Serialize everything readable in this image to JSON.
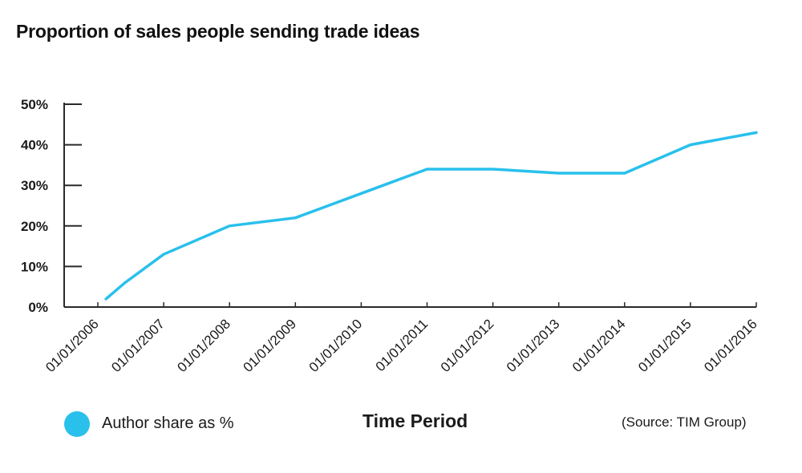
{
  "chart_data": {
    "type": "line",
    "title": "Proportion of sales people sending trade ideas",
    "xlabel": "Time Period",
    "ylabel": "",
    "ylim": [
      0,
      50
    ],
    "y_tick_values": [
      0,
      10,
      20,
      30,
      40,
      50
    ],
    "y_tick_labels": [
      "0%",
      "10%",
      "20%",
      "30%",
      "40%",
      "50%"
    ],
    "categories": [
      "01/01/2006",
      "01/01/2007",
      "01/01/2008",
      "01/01/2009",
      "01/01/2010",
      "01/01/2011",
      "01/01/2012",
      "01/01/2013",
      "01/01/2014",
      "01/01/2015",
      "01/01/2016"
    ],
    "series": [
      {
        "name": "Author share as %",
        "color": "#29c0ec",
        "points": [
          {
            "x": "2006-02-15",
            "y": 2
          },
          {
            "x": "2006-06-01",
            "y": 6
          },
          {
            "x": "2007-01-01",
            "y": 13
          },
          {
            "x": "2008-01-01",
            "y": 20
          },
          {
            "x": "2009-01-01",
            "y": 22
          },
          {
            "x": "2010-01-01",
            "y": 28
          },
          {
            "x": "2011-01-01",
            "y": 34
          },
          {
            "x": "2012-01-01",
            "y": 34
          },
          {
            "x": "2013-01-01",
            "y": 33
          },
          {
            "x": "2014-01-01",
            "y": 33
          },
          {
            "x": "2015-01-01",
            "y": 40
          },
          {
            "x": "2016-01-01",
            "y": 43
          }
        ]
      }
    ],
    "grid": false,
    "legend_position": "bottom-left",
    "source": "(Source: TIM Group)"
  }
}
